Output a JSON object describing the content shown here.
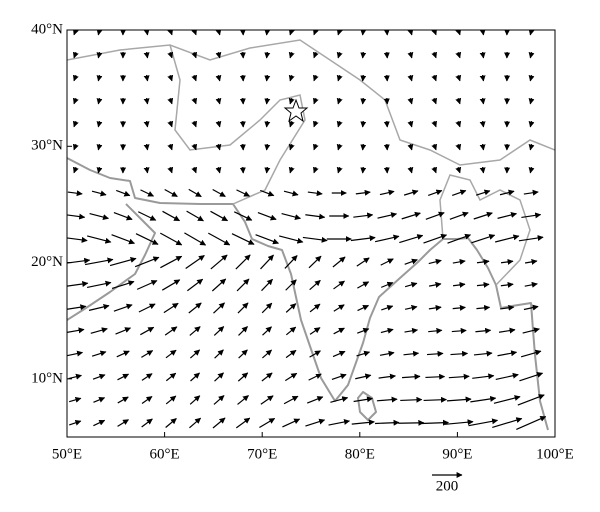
{
  "map": {
    "xlim": [
      50,
      100
    ],
    "ylim": [
      5,
      40
    ],
    "xticks": [
      {
        "value": 50,
        "label": "50°E"
      },
      {
        "value": 60,
        "label": "60°E"
      },
      {
        "value": 70,
        "label": "70°E"
      },
      {
        "value": 80,
        "label": "80°E"
      },
      {
        "value": 90,
        "label": "90°E"
      },
      {
        "value": 100,
        "label": "100°E"
      }
    ],
    "yticks": [
      {
        "value": 10,
        "label": "10°N"
      },
      {
        "value": 20,
        "label": "20°N"
      },
      {
        "value": 30,
        "label": "30°N"
      },
      {
        "value": 40,
        "label": "40°N"
      }
    ],
    "reference_vector": 200
  }
}
